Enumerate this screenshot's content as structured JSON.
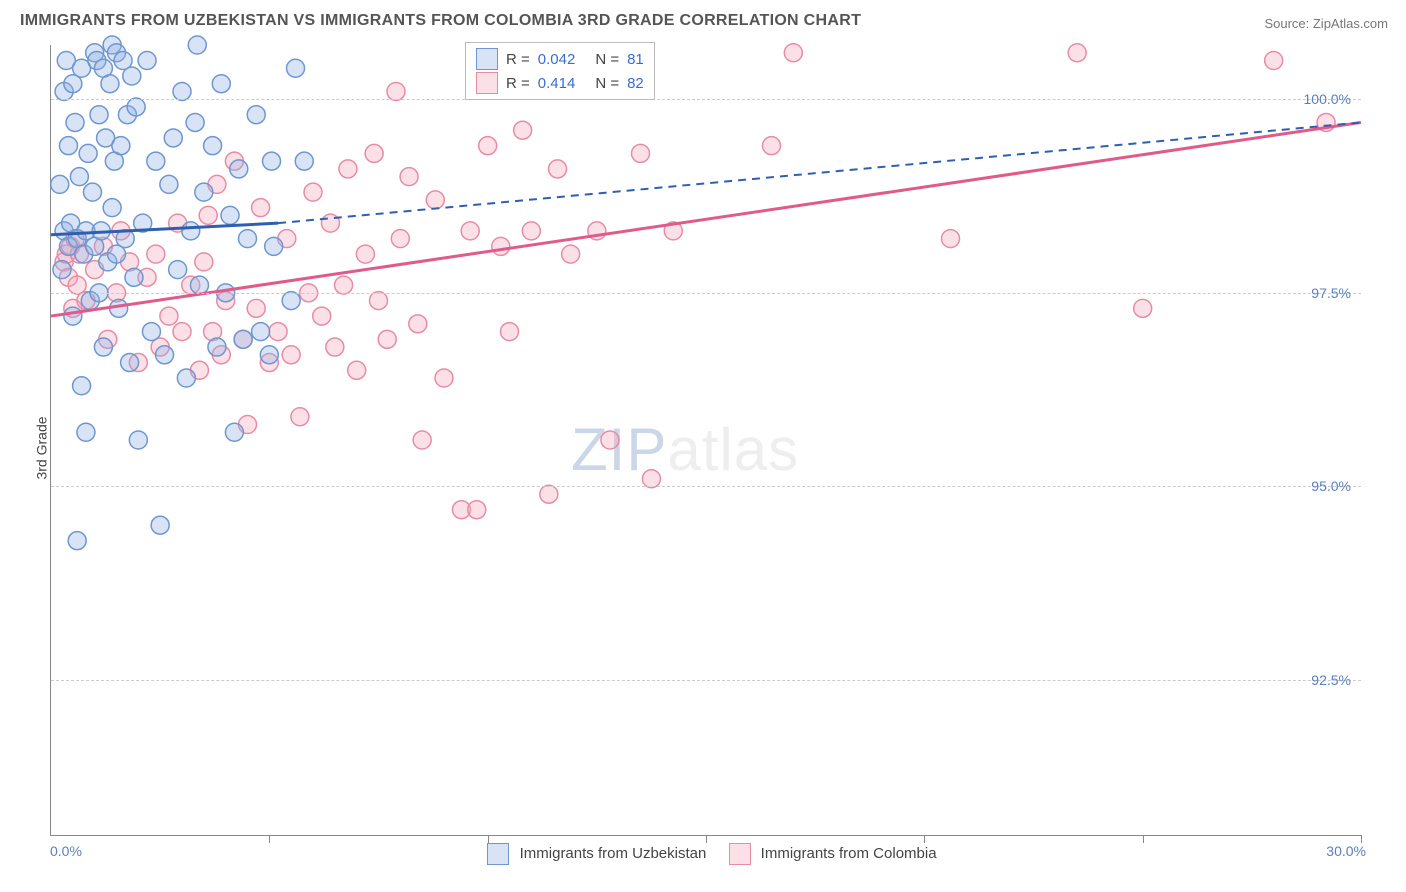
{
  "title": "IMMIGRANTS FROM UZBEKISTAN VS IMMIGRANTS FROM COLOMBIA 3RD GRADE CORRELATION CHART",
  "source_prefix": "Source: ",
  "source_name": "ZipAtlas.com",
  "yaxis_title": "3rd Grade",
  "watermark_zip": "ZIP",
  "watermark_atlas": "atlas",
  "chart": {
    "type": "scatter",
    "xlim": [
      0,
      30
    ],
    "ylim": [
      90.5,
      100.7
    ],
    "xtick_positions": [
      0,
      5,
      10,
      15,
      20,
      25,
      30
    ],
    "xlabel_min": "0.0%",
    "xlabel_max": "30.0%",
    "yticks": [
      {
        "v": 92.5,
        "label": "92.5%"
      },
      {
        "v": 95.0,
        "label": "95.0%"
      },
      {
        "v": 97.5,
        "label": "97.5%"
      },
      {
        "v": 100.0,
        "label": "100.0%"
      }
    ],
    "grid_color": "#cccccc",
    "background_color": "#ffffff",
    "series": [
      {
        "name": "Immigrants from Uzbekistan",
        "marker_color": "#8eb2e5",
        "marker_fill": "rgba(142,178,229,0.35)",
        "marker_stroke": "#6f97cf",
        "line_color": "#2f5fb0",
        "marker_radius": 9,
        "r_label": "R =",
        "r_value": "0.042",
        "n_label": "N =",
        "n_value": "81",
        "trend_solid": {
          "x1": 0,
          "y1": 98.25,
          "x2": 5.2,
          "y2": 98.4
        },
        "trend_dashed": {
          "x1": 5.2,
          "y1": 98.4,
          "x2": 30,
          "y2": 99.7
        },
        "points": [
          [
            0.2,
            98.9
          ],
          [
            0.25,
            97.8
          ],
          [
            0.3,
            98.3
          ],
          [
            0.3,
            100.1
          ],
          [
            0.35,
            100.5
          ],
          [
            0.4,
            99.4
          ],
          [
            0.4,
            98.1
          ],
          [
            0.45,
            98.4
          ],
          [
            0.5,
            100.2
          ],
          [
            0.5,
            97.2
          ],
          [
            0.55,
            99.7
          ],
          [
            0.6,
            94.3
          ],
          [
            0.6,
            98.2
          ],
          [
            0.65,
            99.0
          ],
          [
            0.7,
            100.4
          ],
          [
            0.7,
            96.3
          ],
          [
            0.75,
            98.0
          ],
          [
            0.8,
            98.3
          ],
          [
            0.8,
            95.7
          ],
          [
            0.85,
            99.3
          ],
          [
            0.9,
            97.4
          ],
          [
            0.95,
            98.8
          ],
          [
            1.0,
            100.6
          ],
          [
            1.0,
            98.1
          ],
          [
            1.05,
            100.5
          ],
          [
            1.1,
            99.8
          ],
          [
            1.1,
            97.5
          ],
          [
            1.15,
            98.3
          ],
          [
            1.2,
            100.4
          ],
          [
            1.2,
            96.8
          ],
          [
            1.25,
            99.5
          ],
          [
            1.3,
            97.9
          ],
          [
            1.35,
            100.2
          ],
          [
            1.4,
            98.6
          ],
          [
            1.4,
            100.7
          ],
          [
            1.45,
            99.2
          ],
          [
            1.5,
            100.6
          ],
          [
            1.5,
            98.0
          ],
          [
            1.55,
            97.3
          ],
          [
            1.6,
            99.4
          ],
          [
            1.65,
            100.5
          ],
          [
            1.7,
            98.2
          ],
          [
            1.75,
            99.8
          ],
          [
            1.8,
            96.6
          ],
          [
            1.85,
            100.3
          ],
          [
            1.9,
            97.7
          ],
          [
            1.95,
            99.9
          ],
          [
            2.0,
            95.6
          ],
          [
            2.1,
            98.4
          ],
          [
            2.2,
            100.5
          ],
          [
            2.3,
            97.0
          ],
          [
            2.4,
            99.2
          ],
          [
            2.5,
            94.5
          ],
          [
            2.6,
            96.7
          ],
          [
            2.7,
            98.9
          ],
          [
            2.8,
            99.5
          ],
          [
            2.9,
            97.8
          ],
          [
            3.0,
            100.1
          ],
          [
            3.1,
            96.4
          ],
          [
            3.2,
            98.3
          ],
          [
            3.3,
            99.7
          ],
          [
            3.35,
            100.7
          ],
          [
            3.4,
            97.6
          ],
          [
            3.5,
            98.8
          ],
          [
            3.7,
            99.4
          ],
          [
            3.8,
            96.8
          ],
          [
            3.9,
            100.2
          ],
          [
            4.0,
            97.5
          ],
          [
            4.1,
            98.5
          ],
          [
            4.2,
            95.7
          ],
          [
            4.3,
            99.1
          ],
          [
            4.4,
            96.9
          ],
          [
            4.5,
            98.2
          ],
          [
            4.7,
            99.8
          ],
          [
            4.8,
            97.0
          ],
          [
            5.0,
            96.7
          ],
          [
            5.05,
            99.2
          ],
          [
            5.1,
            98.1
          ],
          [
            5.5,
            97.4
          ],
          [
            5.6,
            100.4
          ],
          [
            5.8,
            99.2
          ]
        ]
      },
      {
        "name": "Immigrants from Colombia",
        "marker_color": "#f4a7bc",
        "marker_fill": "rgba(244,167,188,0.35)",
        "marker_stroke": "#e88ca5",
        "line_color": "#e05a8a",
        "marker_radius": 9,
        "r_label": "R =",
        "r_value": "0.414",
        "n_label": "N =",
        "n_value": "82",
        "trend_solid": {
          "x1": 0,
          "y1": 97.2,
          "x2": 30,
          "y2": 99.7
        },
        "trend_dashed": null,
        "points": [
          [
            0.3,
            97.9
          ],
          [
            0.35,
            98.0
          ],
          [
            0.4,
            97.7
          ],
          [
            0.45,
            98.1
          ],
          [
            0.5,
            97.3
          ],
          [
            0.55,
            98.2
          ],
          [
            0.6,
            97.6
          ],
          [
            0.65,
            98.0
          ],
          [
            0.8,
            97.4
          ],
          [
            1.0,
            97.8
          ],
          [
            1.2,
            98.1
          ],
          [
            1.3,
            96.9
          ],
          [
            1.5,
            97.5
          ],
          [
            1.6,
            98.3
          ],
          [
            1.8,
            97.9
          ],
          [
            2.0,
            96.6
          ],
          [
            2.2,
            97.7
          ],
          [
            2.4,
            98.0
          ],
          [
            2.5,
            96.8
          ],
          [
            2.7,
            97.2
          ],
          [
            2.9,
            98.4
          ],
          [
            3.0,
            97.0
          ],
          [
            3.2,
            97.6
          ],
          [
            3.4,
            96.5
          ],
          [
            3.5,
            97.9
          ],
          [
            3.6,
            98.5
          ],
          [
            3.7,
            97.0
          ],
          [
            3.8,
            98.9
          ],
          [
            3.9,
            96.7
          ],
          [
            4.0,
            97.4
          ],
          [
            4.2,
            99.2
          ],
          [
            4.4,
            96.9
          ],
          [
            4.5,
            95.8
          ],
          [
            4.7,
            97.3
          ],
          [
            4.8,
            98.6
          ],
          [
            5.0,
            96.6
          ],
          [
            5.2,
            97.0
          ],
          [
            5.4,
            98.2
          ],
          [
            5.5,
            96.7
          ],
          [
            5.7,
            95.9
          ],
          [
            5.9,
            97.5
          ],
          [
            6.0,
            98.8
          ],
          [
            6.2,
            97.2
          ],
          [
            6.4,
            98.4
          ],
          [
            6.5,
            96.8
          ],
          [
            6.7,
            97.6
          ],
          [
            6.8,
            99.1
          ],
          [
            7.0,
            96.5
          ],
          [
            7.2,
            98.0
          ],
          [
            7.4,
            99.3
          ],
          [
            7.5,
            97.4
          ],
          [
            7.7,
            96.9
          ],
          [
            7.9,
            100.1
          ],
          [
            8.0,
            98.2
          ],
          [
            8.2,
            99.0
          ],
          [
            8.4,
            97.1
          ],
          [
            8.5,
            95.6
          ],
          [
            8.8,
            98.7
          ],
          [
            9.0,
            96.4
          ],
          [
            9.4,
            94.7
          ],
          [
            9.6,
            98.3
          ],
          [
            9.75,
            94.7
          ],
          [
            10.0,
            99.4
          ],
          [
            10.3,
            98.1
          ],
          [
            10.5,
            97.0
          ],
          [
            10.8,
            99.6
          ],
          [
            11.0,
            98.3
          ],
          [
            11.4,
            94.9
          ],
          [
            11.6,
            99.1
          ],
          [
            11.9,
            98.0
          ],
          [
            12.5,
            98.3
          ],
          [
            12.8,
            95.6
          ],
          [
            13.5,
            99.3
          ],
          [
            13.75,
            95.1
          ],
          [
            14.25,
            98.3
          ],
          [
            16.5,
            99.4
          ],
          [
            17.0,
            100.6
          ],
          [
            20.6,
            98.2
          ],
          [
            23.5,
            100.6
          ],
          [
            25.0,
            97.3
          ],
          [
            28.0,
            100.5
          ],
          [
            29.2,
            99.7
          ]
        ]
      }
    ]
  },
  "bottom_legend": {
    "series1": "Immigrants from Uzbekistan",
    "series2": "Immigrants from Colombia"
  }
}
